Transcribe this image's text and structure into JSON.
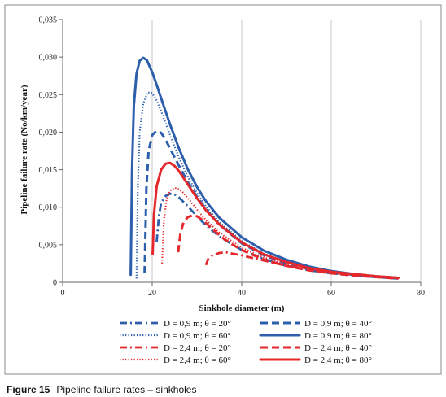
{
  "figure": {
    "caption_label": "Figure 15",
    "caption_text": "Pipeline failure rates – sinkholes"
  },
  "chart_data": {
    "type": "line",
    "title": "",
    "xlabel": "Sinkhole diameter (m)",
    "ylabel": "Pipeline failure rate (No/km/year)",
    "xlim": [
      0,
      80
    ],
    "ylim": [
      0,
      0.035
    ],
    "xticks": [
      "0",
      "20",
      "40",
      "60",
      "80"
    ],
    "yticks": [
      "0",
      "0,005",
      "0,010",
      "0,015",
      "0,020",
      "0,025",
      "0,030",
      "0,035"
    ],
    "grid": "vertical",
    "legend_position": "bottom",
    "colors": {
      "blue": "#2e5fad",
      "red": "#e5282c",
      "grid": "#c8c8c8",
      "frame": "#888888"
    },
    "series": [
      {
        "name": "D = 0,9 m; θ = 20°",
        "color": "#2e5fad",
        "style": "dashdot",
        "x": [
          21.0,
          21.5,
          22.0,
          23.0,
          24.0,
          25.0,
          26.0,
          28.0,
          30.0,
          32.0,
          35.0,
          40.0,
          45.0,
          50.0,
          55.0,
          60.0,
          65.0,
          70.0,
          75.0
        ],
        "y": [
          0.0054,
          0.0088,
          0.0106,
          0.0115,
          0.0118,
          0.0117,
          0.0113,
          0.0101,
          0.0088,
          0.0076,
          0.0061,
          0.0043,
          0.0031,
          0.0022,
          0.0016,
          0.0012,
          0.0009,
          0.0007,
          0.0005
        ]
      },
      {
        "name": "D = 0,9 m; θ = 40°",
        "color": "#2e5fad",
        "style": "dashed",
        "x": [
          18.3,
          18.7,
          19.2,
          20.0,
          21.0,
          22.0,
          23.0,
          24.0,
          26.0,
          28.0,
          30.0,
          32.0,
          35.0,
          40.0,
          45.0,
          50.0,
          55.0,
          60.0,
          65.0,
          70.0,
          75.0
        ],
        "y": [
          0.0012,
          0.0125,
          0.0175,
          0.0196,
          0.0202,
          0.0199,
          0.019,
          0.0178,
          0.0155,
          0.0133,
          0.0114,
          0.0097,
          0.0077,
          0.0052,
          0.0036,
          0.0025,
          0.0018,
          0.0013,
          0.001,
          0.0007,
          0.0005
        ]
      },
      {
        "name": "D = 0,9 m; θ = 60°",
        "color": "#2e5fad",
        "style": "dotted",
        "x": [
          16.5,
          16.8,
          17.2,
          18.0,
          19.0,
          20.0,
          21.0,
          22.0,
          24.0,
          26.0,
          28.0,
          30.0,
          32.0,
          35.0,
          40.0,
          45.0,
          50.0,
          55.0,
          60.0,
          65.0,
          70.0,
          75.0
        ],
        "y": [
          0.0005,
          0.013,
          0.02,
          0.0238,
          0.0253,
          0.0252,
          0.0242,
          0.0228,
          0.0196,
          0.0166,
          0.014,
          0.0119,
          0.0101,
          0.008,
          0.0055,
          0.0038,
          0.0027,
          0.0019,
          0.0014,
          0.001,
          0.0007,
          0.0005
        ]
      },
      {
        "name": "D = 0,9 m; θ = 80°",
        "color": "#2e5fad",
        "style": "solid",
        "x": [
          15.2,
          15.5,
          15.9,
          16.5,
          17.2,
          18.0,
          18.8,
          20.0,
          21.0,
          22.0,
          24.0,
          26.0,
          28.0,
          30.0,
          32.0,
          35.0,
          40.0,
          45.0,
          50.0,
          55.0,
          60.0,
          65.0,
          70.0,
          75.0
        ],
        "y": [
          0.001,
          0.015,
          0.0235,
          0.0278,
          0.0295,
          0.0299,
          0.0296,
          0.028,
          0.0263,
          0.0245,
          0.021,
          0.0178,
          0.015,
          0.0127,
          0.0108,
          0.0086,
          0.006,
          0.0042,
          0.003,
          0.0021,
          0.0015,
          0.0011,
          0.0008,
          0.0006
        ]
      },
      {
        "name": "D = 2,4 m; θ = 20°",
        "color": "#e5282c",
        "style": "dashdot",
        "x": [
          32.0,
          32.5,
          33.5,
          35.0,
          36.5,
          38.0,
          40.0,
          42.0,
          45.0,
          50.0,
          55.0,
          60.0,
          65.0,
          70.0,
          75.0
        ],
        "y": [
          0.0023,
          0.0031,
          0.0036,
          0.0039,
          0.004,
          0.0038,
          0.0036,
          0.0033,
          0.0029,
          0.0022,
          0.0017,
          0.0013,
          0.001,
          0.0008,
          0.0006
        ]
      },
      {
        "name": "D = 2,4 m; θ = 40°",
        "color": "#e5282c",
        "style": "dashed",
        "x": [
          25.8,
          26.3,
          27.0,
          28.0,
          29.0,
          30.0,
          31.0,
          32.0,
          34.0,
          36.0,
          38.0,
          40.0,
          45.0,
          50.0,
          55.0,
          60.0,
          65.0,
          70.0,
          75.0
        ],
        "y": [
          0.004,
          0.0065,
          0.008,
          0.0087,
          0.0089,
          0.0088,
          0.0084,
          0.0079,
          0.0068,
          0.0058,
          0.005,
          0.0043,
          0.003,
          0.0022,
          0.0016,
          0.0012,
          0.0009,
          0.0007,
          0.0005
        ]
      },
      {
        "name": "D = 2,4 m; θ = 60°",
        "color": "#e5282c",
        "style": "dotted",
        "x": [
          22.2,
          22.6,
          23.2,
          24.0,
          25.0,
          26.0,
          27.0,
          28.0,
          30.0,
          32.0,
          35.0,
          40.0,
          45.0,
          50.0,
          55.0,
          60.0,
          65.0,
          70.0,
          75.0
        ],
        "y": [
          0.0025,
          0.008,
          0.011,
          0.0122,
          0.0126,
          0.0124,
          0.0119,
          0.0112,
          0.0097,
          0.0083,
          0.0066,
          0.0046,
          0.0033,
          0.0024,
          0.0017,
          0.0013,
          0.001,
          0.0007,
          0.0005
        ]
      },
      {
        "name": "D = 2,4 m; θ = 80°",
        "color": "#e5282c",
        "style": "solid",
        "x": [
          20.1,
          20.4,
          21.0,
          22.0,
          23.0,
          24.0,
          25.0,
          26.0,
          27.0,
          28.0,
          30.0,
          32.0,
          35.0,
          40.0,
          45.0,
          50.0,
          55.0,
          60.0,
          65.0,
          70.0,
          75.0
        ],
        "y": [
          0.0038,
          0.009,
          0.0128,
          0.015,
          0.0158,
          0.0159,
          0.0155,
          0.0148,
          0.0139,
          0.013,
          0.0112,
          0.0096,
          0.0077,
          0.0053,
          0.0037,
          0.0027,
          0.0019,
          0.0014,
          0.0011,
          0.0008,
          0.0006
        ]
      }
    ]
  }
}
